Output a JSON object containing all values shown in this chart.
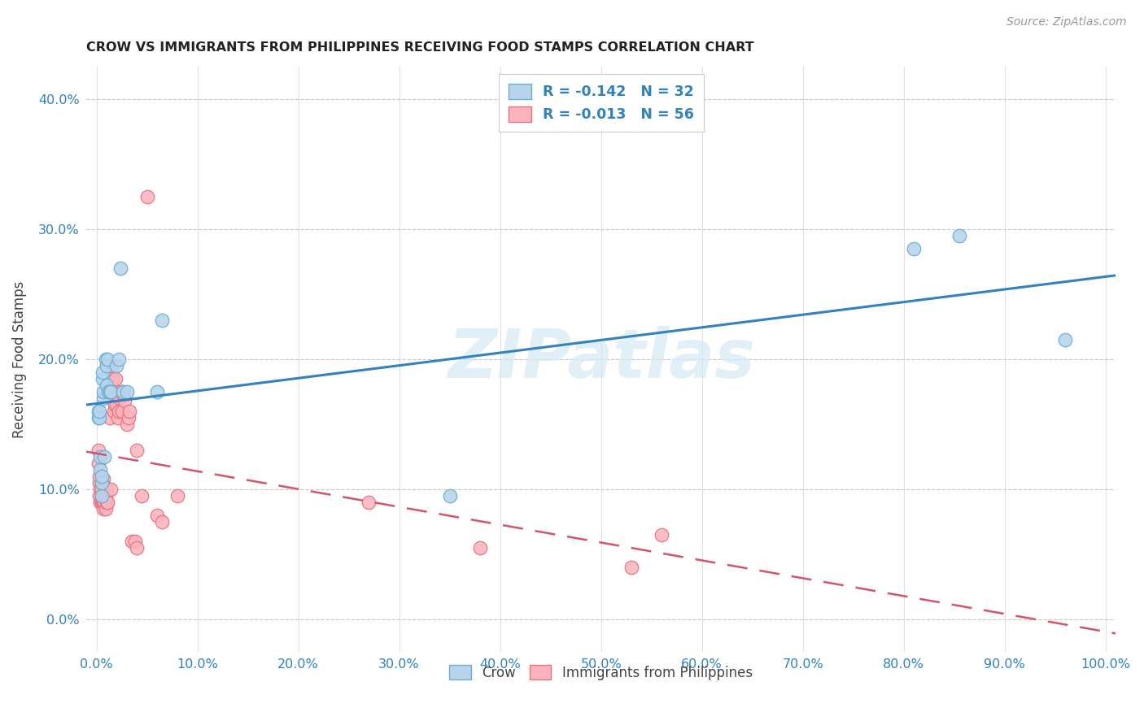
{
  "title": "CROW VS IMMIGRANTS FROM PHILIPPINES RECEIVING FOOD STAMPS CORRELATION CHART",
  "source": "Source: ZipAtlas.com",
  "ylabel": "Receiving Food Stamps",
  "xlim": [
    -0.01,
    1.01
  ],
  "ylim": [
    -0.025,
    0.425
  ],
  "xticks": [
    0.0,
    0.1,
    0.2,
    0.3,
    0.4,
    0.5,
    0.6,
    0.7,
    0.8,
    0.9,
    1.0
  ],
  "yticks": [
    0.0,
    0.1,
    0.2,
    0.3,
    0.4
  ],
  "crow_R": -0.142,
  "crow_N": 32,
  "phil_R": -0.013,
  "phil_N": 56,
  "crow_scatter_color": "#b8d4ea",
  "crow_edge_color": "#6aaed6",
  "crow_line_color": "#3182bd",
  "phil_scatter_color": "#fbb4be",
  "phil_edge_color": "#e8737f",
  "phil_line_color": "#d6546a",
  "watermark_color": "#d5eaf5",
  "crow_x": [
    0.002,
    0.002,
    0.003,
    0.003,
    0.004,
    0.004,
    0.005,
    0.005,
    0.005,
    0.006,
    0.006,
    0.007,
    0.007,
    0.008,
    0.009,
    0.01,
    0.01,
    0.011,
    0.012,
    0.013,
    0.014,
    0.02,
    0.022,
    0.024,
    0.026,
    0.03,
    0.06,
    0.065,
    0.35,
    0.81,
    0.855,
    0.96
  ],
  "crow_y": [
    0.155,
    0.16,
    0.155,
    0.16,
    0.115,
    0.125,
    0.095,
    0.105,
    0.11,
    0.185,
    0.19,
    0.17,
    0.175,
    0.125,
    0.2,
    0.195,
    0.18,
    0.2,
    0.175,
    0.175,
    0.175,
    0.195,
    0.2,
    0.27,
    0.175,
    0.175,
    0.175,
    0.23,
    0.095,
    0.285,
    0.295,
    0.215
  ],
  "phil_x": [
    0.002,
    0.002,
    0.003,
    0.003,
    0.003,
    0.004,
    0.004,
    0.005,
    0.005,
    0.005,
    0.006,
    0.006,
    0.006,
    0.007,
    0.007,
    0.007,
    0.008,
    0.008,
    0.009,
    0.009,
    0.01,
    0.01,
    0.011,
    0.012,
    0.013,
    0.014,
    0.015,
    0.015,
    0.016,
    0.017,
    0.018,
    0.019,
    0.02,
    0.021,
    0.022,
    0.023,
    0.024,
    0.025,
    0.026,
    0.028,
    0.03,
    0.032,
    0.033,
    0.035,
    0.038,
    0.04,
    0.04,
    0.045,
    0.05,
    0.06,
    0.065,
    0.08,
    0.27,
    0.38,
    0.53,
    0.56
  ],
  "phil_y": [
    0.12,
    0.13,
    0.095,
    0.105,
    0.11,
    0.09,
    0.1,
    0.09,
    0.095,
    0.1,
    0.09,
    0.093,
    0.105,
    0.085,
    0.09,
    0.108,
    0.09,
    0.095,
    0.085,
    0.095,
    0.09,
    0.1,
    0.09,
    0.175,
    0.155,
    0.1,
    0.175,
    0.19,
    0.185,
    0.16,
    0.165,
    0.185,
    0.165,
    0.155,
    0.16,
    0.17,
    0.175,
    0.16,
    0.175,
    0.168,
    0.15,
    0.155,
    0.16,
    0.06,
    0.06,
    0.055,
    0.13,
    0.095,
    0.325,
    0.08,
    0.075,
    0.095,
    0.09,
    0.055,
    0.04,
    0.065
  ]
}
